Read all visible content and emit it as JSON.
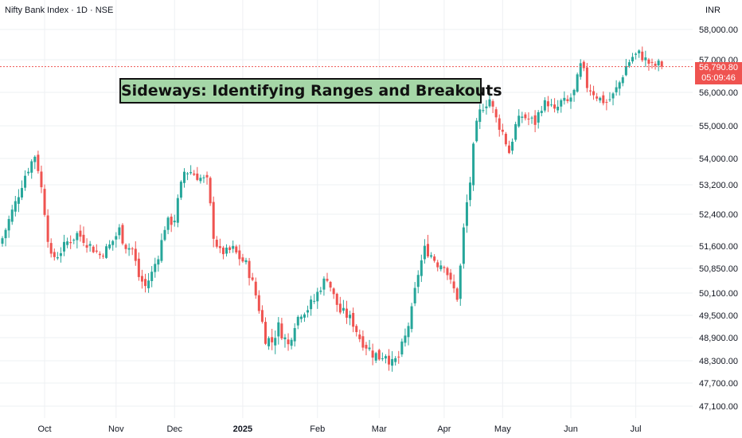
{
  "header": {
    "symbol": "Nifty Bank Index · 1D · NSE",
    "currency": "INR"
  },
  "annotation": "Sideways: Identifying Ranges and Breakouts",
  "price_badge": {
    "price": "56,790.80",
    "countdown": "05:09:46"
  },
  "colors": {
    "up": "#26a69a",
    "down": "#ef5350",
    "grid": "#eef0f3",
    "text": "#131722"
  },
  "chart_data": {
    "type": "candlestick",
    "current_price": 56790.8,
    "y_ticks": [
      {
        "value": 47100,
        "label": "47,100.00"
      },
      {
        "value": 47700,
        "label": "47,700.00"
      },
      {
        "value": 48300,
        "label": "48,300.00"
      },
      {
        "value": 48900,
        "label": "48,900.00"
      },
      {
        "value": 49500,
        "label": "49,500.00"
      },
      {
        "value": 50100,
        "label": "50,100.00"
      },
      {
        "value": 50850,
        "label": "50,850.00"
      },
      {
        "value": 51600,
        "label": "51,600.00"
      },
      {
        "value": 52400,
        "label": "52,400.00"
      },
      {
        "value": 53200,
        "label": "53,200.00"
      },
      {
        "value": 54000,
        "label": "54,000.00"
      },
      {
        "value": 55000,
        "label": "55,000.00"
      },
      {
        "value": 56000,
        "label": "56,000.00"
      },
      {
        "value": 57000,
        "label": "57,000.00"
      },
      {
        "value": 58000,
        "label": "58,000.00"
      }
    ],
    "x_ticks": [
      {
        "label": "Oct",
        "bar": 13,
        "bold": false
      },
      {
        "label": "Nov",
        "bar": 35,
        "bold": false
      },
      {
        "label": "Dec",
        "bar": 53,
        "bold": false
      },
      {
        "label": "2025",
        "bar": 74,
        "bold": true
      },
      {
        "label": "Feb",
        "bar": 97,
        "bold": false
      },
      {
        "label": "Mar",
        "bar": 116,
        "bold": false
      },
      {
        "label": "Apr",
        "bar": 136,
        "bold": false
      },
      {
        "label": "May",
        "bar": 154,
        "bold": false
      },
      {
        "label": "Jun",
        "bar": 175,
        "bold": false
      },
      {
        "label": "Jul",
        "bar": 195,
        "bold": false
      }
    ],
    "anchors": [
      [
        0,
        51800
      ],
      [
        4,
        52700
      ],
      [
        7,
        53500
      ],
      [
        10,
        54100
      ],
      [
        11,
        53700
      ],
      [
        13,
        52500
      ],
      [
        15,
        51200
      ],
      [
        17,
        51300
      ],
      [
        20,
        51700
      ],
      [
        23,
        51900
      ],
      [
        25,
        51800
      ],
      [
        28,
        51500
      ],
      [
        30,
        51300
      ],
      [
        33,
        51600
      ],
      [
        36,
        52000
      ],
      [
        38,
        51600
      ],
      [
        40,
        51500
      ],
      [
        42,
        50600
      ],
      [
        44,
        50300
      ],
      [
        46,
        50700
      ],
      [
        48,
        51300
      ],
      [
        50,
        52100
      ],
      [
        53,
        52300
      ],
      [
        56,
        53600
      ],
      [
        58,
        53600
      ],
      [
        61,
        53400
      ],
      [
        63,
        53300
      ],
      [
        65,
        51900
      ],
      [
        67,
        51400
      ],
      [
        69,
        51400
      ],
      [
        71,
        51500
      ],
      [
        73,
        51200
      ],
      [
        75,
        51000
      ],
      [
        77,
        50400
      ],
      [
        79,
        49700
      ],
      [
        81,
        48900
      ],
      [
        83,
        48800
      ],
      [
        85,
        49200
      ],
      [
        88,
        48700
      ],
      [
        90,
        49300
      ],
      [
        92,
        49600
      ],
      [
        94,
        49700
      ],
      [
        96,
        49900
      ],
      [
        98,
        50300
      ],
      [
        100,
        50600
      ],
      [
        102,
        50000
      ],
      [
        104,
        49600
      ],
      [
        106,
        49500
      ],
      [
        108,
        49300
      ],
      [
        110,
        48900
      ],
      [
        112,
        48700
      ],
      [
        114,
        48500
      ],
      [
        116,
        48400
      ],
      [
        118,
        48500
      ],
      [
        120,
        48200
      ],
      [
        122,
        48400
      ],
      [
        124,
        48900
      ],
      [
        126,
        49600
      ],
      [
        128,
        50700
      ],
      [
        130,
        51500
      ],
      [
        132,
        51300
      ],
      [
        134,
        51000
      ],
      [
        136,
        51000
      ],
      [
        138,
        50400
      ],
      [
        140,
        50000
      ],
      [
        141,
        50900
      ],
      [
        142,
        52000
      ],
      [
        143,
        52700
      ],
      [
        144,
        53300
      ],
      [
        145,
        54300
      ],
      [
        146,
        55000
      ],
      [
        147,
        55400
      ],
      [
        148,
        55600
      ],
      [
        150,
        55800
      ],
      [
        152,
        55200
      ],
      [
        154,
        54800
      ],
      [
        156,
        54200
      ],
      [
        158,
        55000
      ],
      [
        160,
        55300
      ],
      [
        162,
        55200
      ],
      [
        164,
        55100
      ],
      [
        166,
        55600
      ],
      [
        168,
        55700
      ],
      [
        170,
        55400
      ],
      [
        172,
        55700
      ],
      [
        174,
        55700
      ],
      [
        176,
        56000
      ],
      [
        178,
        56800
      ],
      [
        179,
        56600
      ],
      [
        180,
        56200
      ],
      [
        182,
        56000
      ],
      [
        184,
        55800
      ],
      [
        186,
        55700
      ],
      [
        188,
        55900
      ],
      [
        190,
        56300
      ],
      [
        192,
        56800
      ],
      [
        194,
        57100
      ],
      [
        196,
        57200
      ],
      [
        198,
        57000
      ],
      [
        200,
        56800
      ],
      [
        202,
        56850
      ],
      [
        203,
        56790.8
      ]
    ]
  }
}
